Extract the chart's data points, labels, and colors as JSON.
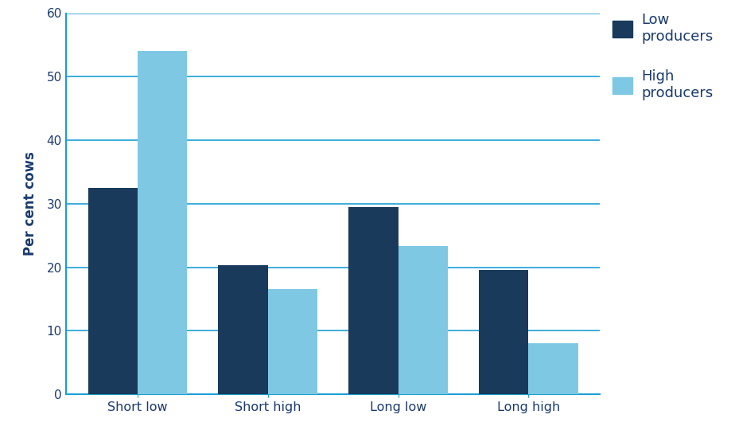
{
  "categories": [
    "Short low",
    "Short high",
    "Long low",
    "Long high"
  ],
  "low_producers": [
    32.5,
    20.3,
    29.5,
    19.5
  ],
  "high_producers": [
    54.0,
    16.5,
    23.3,
    8.0
  ],
  "low_color": "#1a3a5c",
  "high_color": "#7ec8e3",
  "ylabel": "Per cent cows",
  "ylim": [
    0,
    60
  ],
  "yticks": [
    0,
    10,
    20,
    30,
    40,
    50,
    60
  ],
  "legend_low": "Low\nproducers",
  "legend_high": "High\nproducers",
  "grid_color": "#1a9fd4",
  "axis_color": "#1a9fd4",
  "tick_label_color": "#1a3a6e",
  "bar_width": 0.38,
  "background_color": "#ffffff",
  "text_color": "#1a3a6e",
  "ylabel_color": "#1a3a6e",
  "figsize": [
    9.2,
    5.5
  ],
  "dpi": 100
}
